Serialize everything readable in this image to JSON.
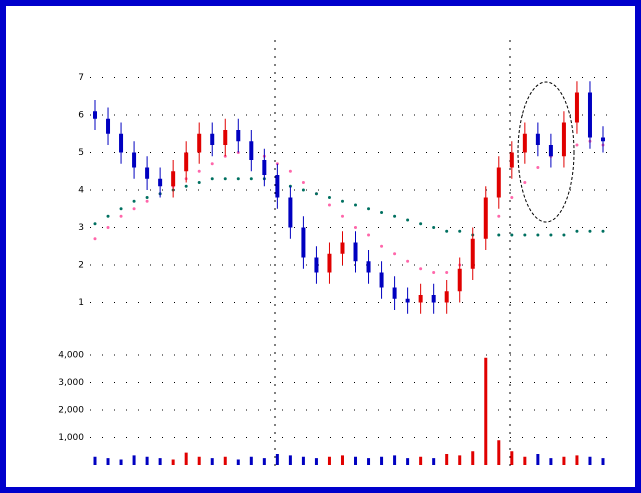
{
  "chart_data": {
    "type": "candlestick",
    "open": [
      6.1,
      5.9,
      5.5,
      5.0,
      4.6,
      4.3,
      4.1,
      4.5,
      5.0,
      5.5,
      5.2,
      5.6,
      5.3,
      4.8,
      4.4,
      3.8,
      3.0,
      2.2,
      1.8,
      2.3,
      2.6,
      2.1,
      1.8,
      1.4,
      1.1,
      1.0,
      1.2,
      1.0,
      1.3,
      1.9,
      2.7,
      3.8,
      4.6,
      5.0,
      5.5,
      5.2,
      4.9,
      5.8,
      6.6,
      5.4
    ],
    "close": [
      5.9,
      5.5,
      5.0,
      4.6,
      4.3,
      4.1,
      4.5,
      5.0,
      5.5,
      5.2,
      5.6,
      5.3,
      4.8,
      4.4,
      3.8,
      3.0,
      2.2,
      1.8,
      2.3,
      2.6,
      2.1,
      1.8,
      1.4,
      1.1,
      1.0,
      1.2,
      1.0,
      1.3,
      1.9,
      2.7,
      3.8,
      4.6,
      5.0,
      5.5,
      5.2,
      4.9,
      5.8,
      6.6,
      5.4,
      5.3
    ],
    "high": [
      6.4,
      6.2,
      5.8,
      5.3,
      4.9,
      4.6,
      4.8,
      5.3,
      5.8,
      5.8,
      5.9,
      5.9,
      5.6,
      5.1,
      4.7,
      4.1,
      3.3,
      2.5,
      2.6,
      2.9,
      2.9,
      2.4,
      2.1,
      1.7,
      1.4,
      1.5,
      1.5,
      1.6,
      2.2,
      3.0,
      4.1,
      4.9,
      5.3,
      5.8,
      5.8,
      5.5,
      6.1,
      6.9,
      6.9,
      5.7
    ],
    "low": [
      5.6,
      5.2,
      4.7,
      4.3,
      4.0,
      3.8,
      3.8,
      4.2,
      4.7,
      4.9,
      4.9,
      5.0,
      4.5,
      4.1,
      3.5,
      2.7,
      1.9,
      1.5,
      1.5,
      2.0,
      1.8,
      1.5,
      1.1,
      0.8,
      0.7,
      0.7,
      0.7,
      0.7,
      1.0,
      1.6,
      2.4,
      3.5,
      4.3,
      4.7,
      4.9,
      4.6,
      4.6,
      5.5,
      5.1,
      5.0
    ],
    "up_color": "#e00000",
    "down_color": "#0000c0",
    "ma": [
      {
        "color": "#ff66aa",
        "values": [
          2.7,
          3.0,
          3.3,
          3.5,
          3.7,
          3.9,
          4.1,
          4.3,
          4.5,
          4.7,
          4.9,
          5.0,
          5.0,
          4.9,
          4.7,
          4.5,
          4.2,
          3.9,
          3.6,
          3.3,
          3.0,
          2.8,
          2.5,
          2.3,
          2.1,
          1.9,
          1.8,
          1.8,
          2.0,
          2.3,
          2.8,
          3.3,
          3.8,
          4.2,
          4.6,
          4.9,
          5.1,
          5.2,
          5.3,
          5.2
        ]
      },
      {
        "color": "#007060",
        "values": [
          3.1,
          3.3,
          3.5,
          3.7,
          3.8,
          3.9,
          4.0,
          4.1,
          4.2,
          4.3,
          4.3,
          4.3,
          4.3,
          4.3,
          4.2,
          4.1,
          4.0,
          3.9,
          3.8,
          3.7,
          3.6,
          3.5,
          3.4,
          3.3,
          3.2,
          3.1,
          3.0,
          2.9,
          2.9,
          2.8,
          2.8,
          2.8,
          2.8,
          2.8,
          2.8,
          2.8,
          2.8,
          2.9,
          2.9,
          2.9
        ]
      }
    ],
    "volume": [
      300,
      250,
      200,
      350,
      300,
      250,
      200,
      450,
      300,
      250,
      300,
      200,
      300,
      250,
      400,
      350,
      300,
      250,
      300,
      350,
      300,
      250,
      300,
      350,
      250,
      300,
      250,
      400,
      350,
      500,
      3900,
      900,
      500,
      300,
      400,
      250,
      300,
      350,
      300,
      250
    ],
    "ylim": [
      0,
      8
    ],
    "yticks": [
      1,
      2,
      3,
      4,
      5,
      6,
      7
    ],
    "y2lim": [
      0,
      4000
    ],
    "y2ticks": [
      {
        "value": 1000,
        "label": "1,000"
      },
      {
        "value": 2000,
        "label": "2,000"
      },
      {
        "value": 3000,
        "label": "3,000"
      },
      {
        "value": 4000,
        "label": "4,000"
      }
    ],
    "grid": true
  }
}
